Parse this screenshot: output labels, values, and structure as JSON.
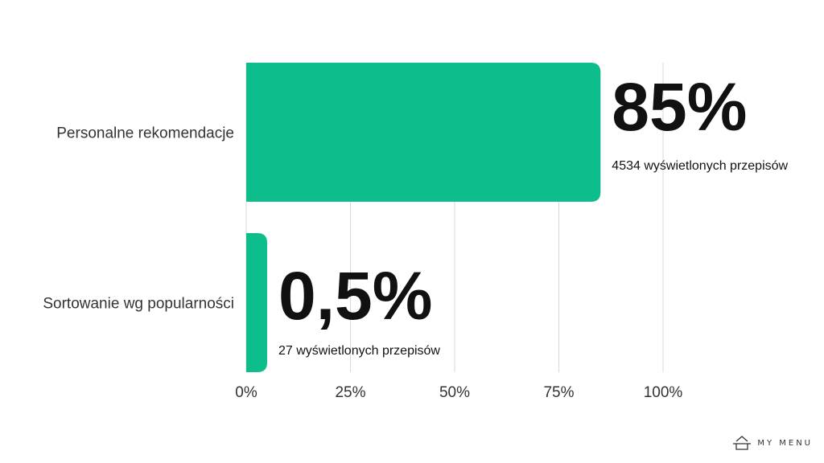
{
  "chart_data": {
    "type": "bar",
    "orientation": "horizontal",
    "categories": [
      "Personalne rekomendacje",
      "Sortowanie wg popularności"
    ],
    "values": [
      85,
      0.5
    ],
    "value_labels": [
      "85%",
      "0,5%"
    ],
    "sub_labels": [
      "4534 wyświetlonych przepisów",
      "27 wyświetlonych przepisów"
    ],
    "xlim": [
      0,
      100
    ],
    "xticks": [
      0,
      25,
      50,
      75,
      100
    ],
    "xtick_labels": [
      "0%",
      "25%",
      "50%",
      "75%",
      "100%"
    ],
    "grid": "vertical",
    "colors": {
      "bar": "#0dbd8b",
      "grid": "#d9d9d9",
      "text": "#333333",
      "value": "#111111"
    }
  },
  "brand": {
    "name": "MY MENU",
    "logo_icon": "house-pot-icon"
  }
}
